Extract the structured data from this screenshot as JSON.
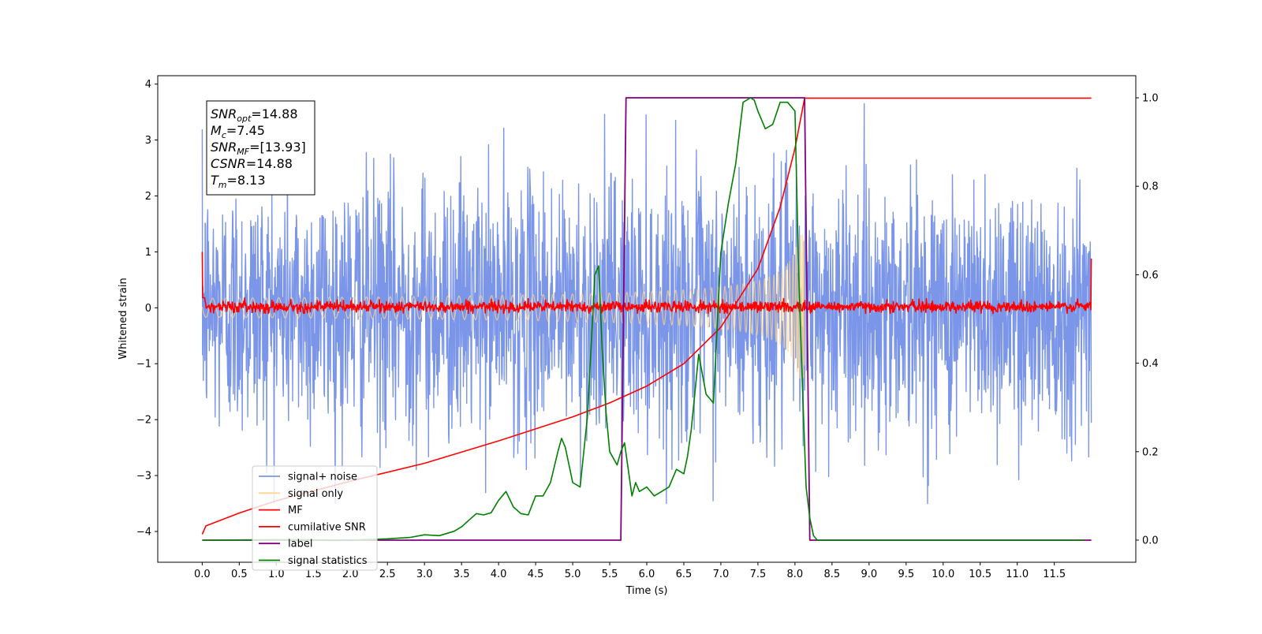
{
  "chart_data": {
    "type": "line",
    "xlabel": "Time (s)",
    "ylabel_left": "Whitened strain",
    "ylabel_right": "",
    "xlim": [
      -0.6,
      12.6
    ],
    "ylim_left": [
      -4.55,
      4.15
    ],
    "ylim_right": [
      -0.05,
      1.05
    ],
    "grid": false,
    "legend_position": "lower-left",
    "x_ticks": [
      "0.0",
      "0.5",
      "1.0",
      "1.5",
      "2.0",
      "2.5",
      "3.0",
      "3.5",
      "4.0",
      "4.5",
      "5.0",
      "5.5",
      "6.0",
      "6.5",
      "7.0",
      "7.5",
      "8.0",
      "8.5",
      "9.0",
      "9.5",
      "10.0",
      "10.5",
      "11.0",
      "11.5"
    ],
    "y_ticks_left": [
      "4",
      "3",
      "2",
      "1",
      "0",
      "−1",
      "−2",
      "−3",
      "−4"
    ],
    "y_ticks_right": [
      "1.0",
      "0.8",
      "0.6",
      "0.4",
      "0.2",
      "0.0"
    ],
    "annotation": [
      {
        "sym": "SNR",
        "sub": "opt",
        "value": "=14.88"
      },
      {
        "sym": "M",
        "sub": "c",
        "value": "=7.45"
      },
      {
        "sym": "SNR",
        "sub": "MF",
        "value": "=[13.93]"
      },
      {
        "sym": "CSNR",
        "sub": "",
        "value": "=14.88"
      },
      {
        "sym": "T",
        "sub": "m",
        "value": "=8.13"
      }
    ],
    "legend": [
      {
        "label": "signal+ noise",
        "color": "#7b96e8"
      },
      {
        "label": "signal only",
        "color": "#ffd58f"
      },
      {
        "label": "MF",
        "color": "#ff0000"
      },
      {
        "label": "cumilative SNR",
        "color": "#ff0000"
      },
      {
        "label": "label",
        "color": "#800080"
      },
      {
        "label": "signal statistics",
        "color": "#008000"
      }
    ],
    "series": [
      {
        "name": "signal+ noise",
        "axis": "left",
        "color": "#7b96e8",
        "kind": "noise",
        "x_range": [
          0.0,
          12.0
        ],
        "amplitude_envelope": [
          -3.5,
          3.65
        ]
      },
      {
        "name": "signal only",
        "axis": "left",
        "color": "#ffd58f",
        "kind": "chirp",
        "x_range": [
          0.0,
          8.13
        ],
        "merger_time": 8.13,
        "peak_amplitude": 1.3
      },
      {
        "name": "MF",
        "axis": "left",
        "color": "#ff0000",
        "kind": "noise",
        "x_range": [
          0.0,
          12.0
        ],
        "amplitude_envelope": [
          -0.1,
          0.18
        ],
        "edge_values": {
          "start": 1.0,
          "end": 0.88
        }
      },
      {
        "name": "cumilative SNR",
        "axis": "left",
        "color": "#ff0000",
        "x": [
          0.0,
          0.05,
          0.5,
          1.0,
          2.0,
          3.0,
          4.0,
          5.0,
          5.5,
          6.0,
          6.5,
          7.0,
          7.5,
          7.8,
          8.0,
          8.13,
          12.0
        ],
        "y": [
          -4.05,
          -3.9,
          -3.67,
          -3.45,
          -3.1,
          -2.78,
          -2.38,
          -1.95,
          -1.7,
          -1.4,
          -1.0,
          -0.35,
          0.7,
          1.8,
          2.85,
          3.75,
          3.75
        ]
      },
      {
        "name": "label",
        "axis": "right",
        "color": "#800080",
        "x": [
          0.0,
          5.65,
          5.72,
          8.13,
          8.2,
          12.0
        ],
        "y": [
          0.0,
          0.0,
          1.0,
          1.0,
          0.0,
          0.0
        ]
      },
      {
        "name": "signal statistics",
        "axis": "right",
        "color": "#008000",
        "x": [
          0.0,
          1.0,
          2.0,
          2.5,
          2.8,
          3.0,
          3.2,
          3.4,
          3.5,
          3.6,
          3.7,
          3.8,
          3.9,
          4.0,
          4.1,
          4.2,
          4.3,
          4.4,
          4.5,
          4.6,
          4.7,
          4.8,
          4.85,
          4.9,
          5.0,
          5.1,
          5.2,
          5.3,
          5.35,
          5.4,
          5.45,
          5.5,
          5.6,
          5.65,
          5.7,
          5.8,
          5.85,
          5.9,
          6.0,
          6.1,
          6.2,
          6.3,
          6.4,
          6.5,
          6.55,
          6.6,
          6.7,
          6.8,
          6.9,
          7.0,
          7.1,
          7.2,
          7.3,
          7.4,
          7.45,
          7.5,
          7.6,
          7.7,
          7.8,
          7.9,
          8.0,
          8.05,
          8.1,
          8.15,
          8.2,
          8.25,
          8.3,
          8.5,
          9.0,
          10.0,
          11.0,
          11.9
        ],
        "y": [
          0.0,
          0.001,
          0.0,
          0.003,
          0.006,
          0.012,
          0.01,
          0.02,
          0.03,
          0.045,
          0.06,
          0.057,
          0.062,
          0.09,
          0.11,
          0.075,
          0.06,
          0.057,
          0.1,
          0.1,
          0.13,
          0.2,
          0.23,
          0.21,
          0.13,
          0.12,
          0.28,
          0.6,
          0.62,
          0.43,
          0.29,
          0.2,
          0.17,
          0.2,
          0.22,
          0.1,
          0.13,
          0.11,
          0.12,
          0.1,
          0.11,
          0.12,
          0.16,
          0.15,
          0.19,
          0.25,
          0.42,
          0.33,
          0.31,
          0.65,
          0.76,
          0.85,
          0.99,
          1.0,
          0.995,
          0.97,
          0.93,
          0.94,
          0.99,
          0.99,
          0.97,
          0.6,
          0.35,
          0.12,
          0.05,
          0.01,
          0.0,
          0.0,
          0.0,
          0.0,
          0.0,
          0.0
        ]
      }
    ]
  }
}
